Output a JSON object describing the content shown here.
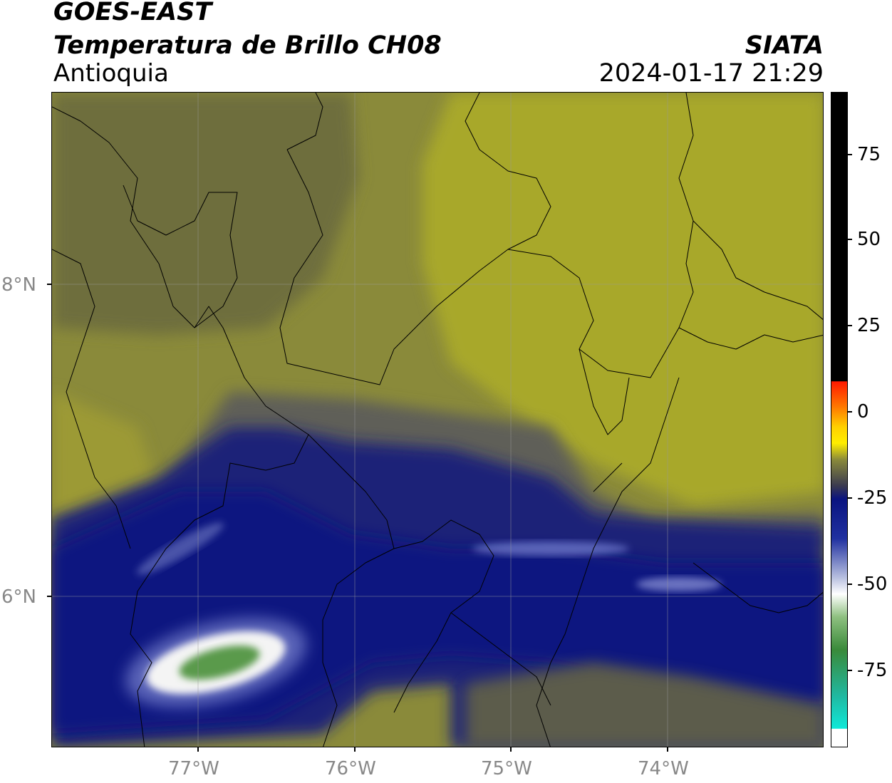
{
  "header": {
    "title_line1": "GOES-EAST",
    "title_line2": "Temperatura de Brillo CH08",
    "organization": "SIATA",
    "region": "Antioquia",
    "timestamp": "2024-01-17 21:29"
  },
  "map": {
    "lat_labels": [
      "8°N",
      "6°N"
    ],
    "lon_labels": [
      "77°W",
      "76°W",
      "75°W",
      "74°W"
    ],
    "colors": {
      "dark_olive": "#6e6e3c",
      "olive": "#8a8a3a",
      "yellow_olive": "#a8a82c",
      "navy": "#1e2178",
      "deep_navy": "#0f1580",
      "white": "#f4f4f4",
      "green": "#5a9a4c"
    }
  },
  "colorbar": {
    "tick_labels": [
      "75",
      "50",
      "25",
      "0",
      "-25",
      "-50",
      "-75"
    ],
    "colors": {
      "black": "#000000",
      "red": "#ff1a00",
      "orange": "#ff9900",
      "yellow": "#ffee00",
      "olive": "#8a8a3a",
      "navy": "#0a1480",
      "white": "#ffffff",
      "green": "#3a8a3a",
      "cyan": "#10e8d8"
    }
  }
}
